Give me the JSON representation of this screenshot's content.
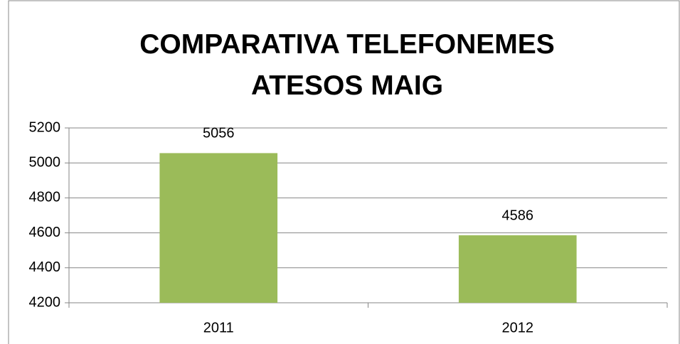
{
  "chart_data": {
    "type": "bar",
    "title": "COMPARATIVA TELEFONEMES ATESOS MAIG",
    "categories": [
      "2011",
      "2012"
    ],
    "values": [
      5056,
      4586
    ],
    "color": "#9bbb59",
    "ylim": [
      4200,
      5200
    ],
    "yticks": [
      4200,
      4400,
      4600,
      4800,
      5000,
      5200
    ],
    "grid": true
  }
}
